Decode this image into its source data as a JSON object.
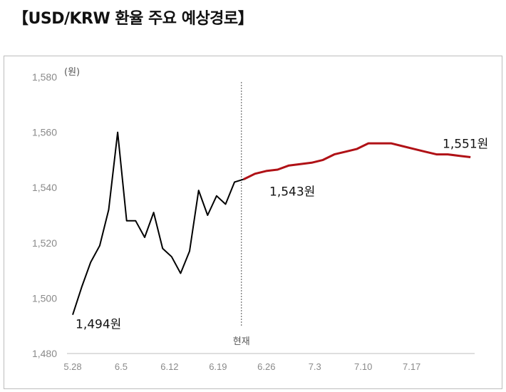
{
  "title": "【USD/KRW 환율 주요 예상경로】",
  "chart_data": {
    "type": "line",
    "unit_label": "(원)",
    "ylim": [
      1480,
      1580
    ],
    "y_ticks": [
      "1,580",
      "1,560",
      "1,540",
      "1,520",
      "1,500",
      "1,480"
    ],
    "x_ticks": [
      "5.28",
      "6.5",
      "6.12",
      "6.19",
      "6.26",
      "7.3",
      "7.10",
      "7.17"
    ],
    "current_marker_label": "현재",
    "series": [
      {
        "color": "#000000",
        "values": [
          1494,
          1504,
          1513,
          1519,
          1532,
          1560,
          1528,
          1528,
          1522,
          1531,
          1518,
          1515,
          1509,
          1517,
          1539,
          1530,
          1537,
          1534,
          1542,
          1543
        ]
      },
      {
        "color": "#b01116",
        "values": [
          1543,
          1545,
          1546,
          1546.5,
          1548,
          1548.5,
          1549,
          1550,
          1552,
          1553,
          1554,
          1556,
          1556,
          1556,
          1555,
          1554,
          1553,
          1552,
          1552,
          1551.5,
          1551
        ]
      }
    ],
    "annotations": [
      {
        "text": "1,494원"
      },
      {
        "text": "1,543원"
      },
      {
        "text": "1,551원"
      }
    ],
    "grid": false,
    "legend": "none"
  }
}
